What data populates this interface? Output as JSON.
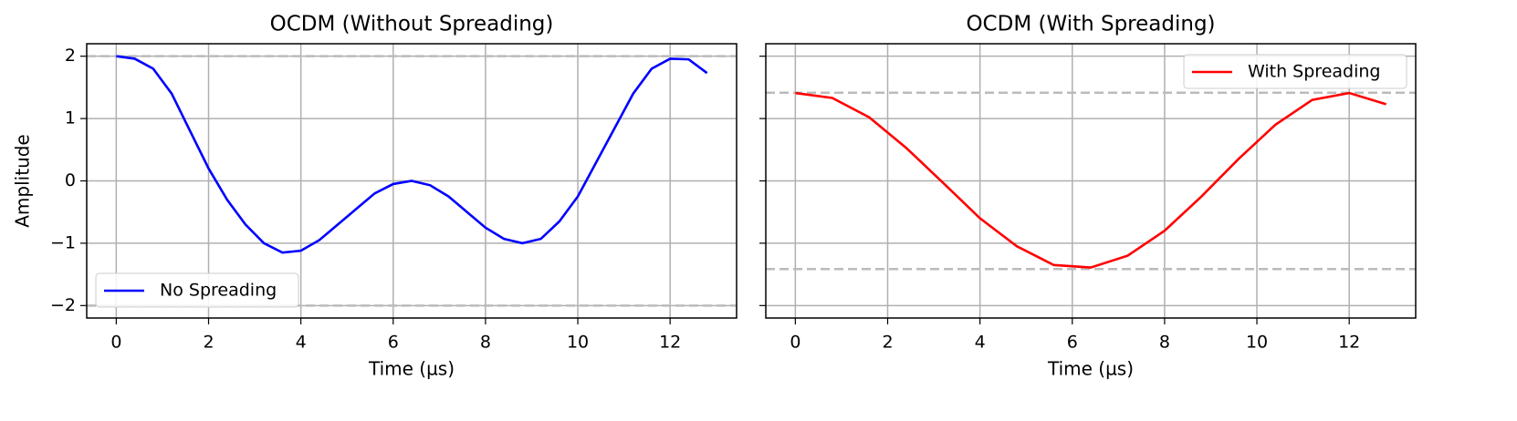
{
  "chart_data": [
    {
      "type": "line",
      "title": "OCDM (Without Spreading)",
      "xlabel": "Time (µs)",
      "ylabel": "Amplitude",
      "x": [
        0,
        0.4,
        0.8,
        1.2,
        1.6,
        2.0,
        2.4,
        2.8,
        3.2,
        3.6,
        4.0,
        4.4,
        4.8,
        5.2,
        5.6,
        6.0,
        6.4,
        6.8,
        7.2,
        7.6,
        8.0,
        8.4,
        8.8,
        9.2,
        9.6,
        10.0,
        10.4,
        10.8,
        11.2,
        11.6,
        12.0,
        12.4,
        12.8
      ],
      "series": [
        {
          "name": "No Spreading",
          "color": "#0000ff",
          "values": [
            2,
            1.96,
            1.8,
            1.4,
            0.8,
            0.2,
            -0.3,
            -0.7,
            -1.0,
            -1.15,
            -1.12,
            -0.95,
            -0.7,
            -0.45,
            -0.2,
            -0.05,
            0,
            -0.07,
            -0.25,
            -0.5,
            -0.75,
            -0.93,
            -1.0,
            -0.93,
            -0.65,
            -0.25,
            0.3,
            0.85,
            1.4,
            1.8,
            1.96,
            1.95,
            1.73
          ]
        }
      ],
      "hlines": [
        2,
        -2
      ],
      "hline_color": "#bbbbbb",
      "xlim": [
        -0.64,
        13.44
      ],
      "xticks": [
        0,
        2,
        4,
        6,
        8,
        10,
        12
      ],
      "ylim": [
        -2.2,
        2.2
      ],
      "yticks": [
        {
          "value": -2,
          "label": "−2"
        },
        {
          "value": -1,
          "label": "−1"
        },
        0,
        1,
        2
      ],
      "grid": true,
      "legend": "lower left"
    },
    {
      "type": "line",
      "title": "OCDM (With Spreading)",
      "xlabel": "Time (µs)",
      "x": [
        0,
        0.8,
        1.6,
        2.4,
        3.2,
        4.0,
        4.8,
        5.6,
        6.4,
        7.2,
        8.0,
        8.8,
        9.6,
        10.4,
        11.2,
        12.0,
        12.8
      ],
      "series": [
        {
          "name": "With Spreading",
          "color": "#ff0000",
          "values": [
            1.41,
            1.33,
            1.02,
            0.53,
            -0.03,
            -0.6,
            -1.05,
            -1.35,
            -1.39,
            -1.2,
            -0.8,
            -0.25,
            0.35,
            0.9,
            1.3,
            1.41,
            1.23
          ]
        }
      ],
      "hlines": [
        1.414,
        -1.414
      ],
      "hline_color": "#bbbbbb",
      "xlim": [
        -0.64,
        13.44
      ],
      "xticks": [
        0,
        2,
        4,
        6,
        8,
        10,
        12
      ],
      "sharey": true,
      "grid": true,
      "legend": "upper right"
    }
  ]
}
